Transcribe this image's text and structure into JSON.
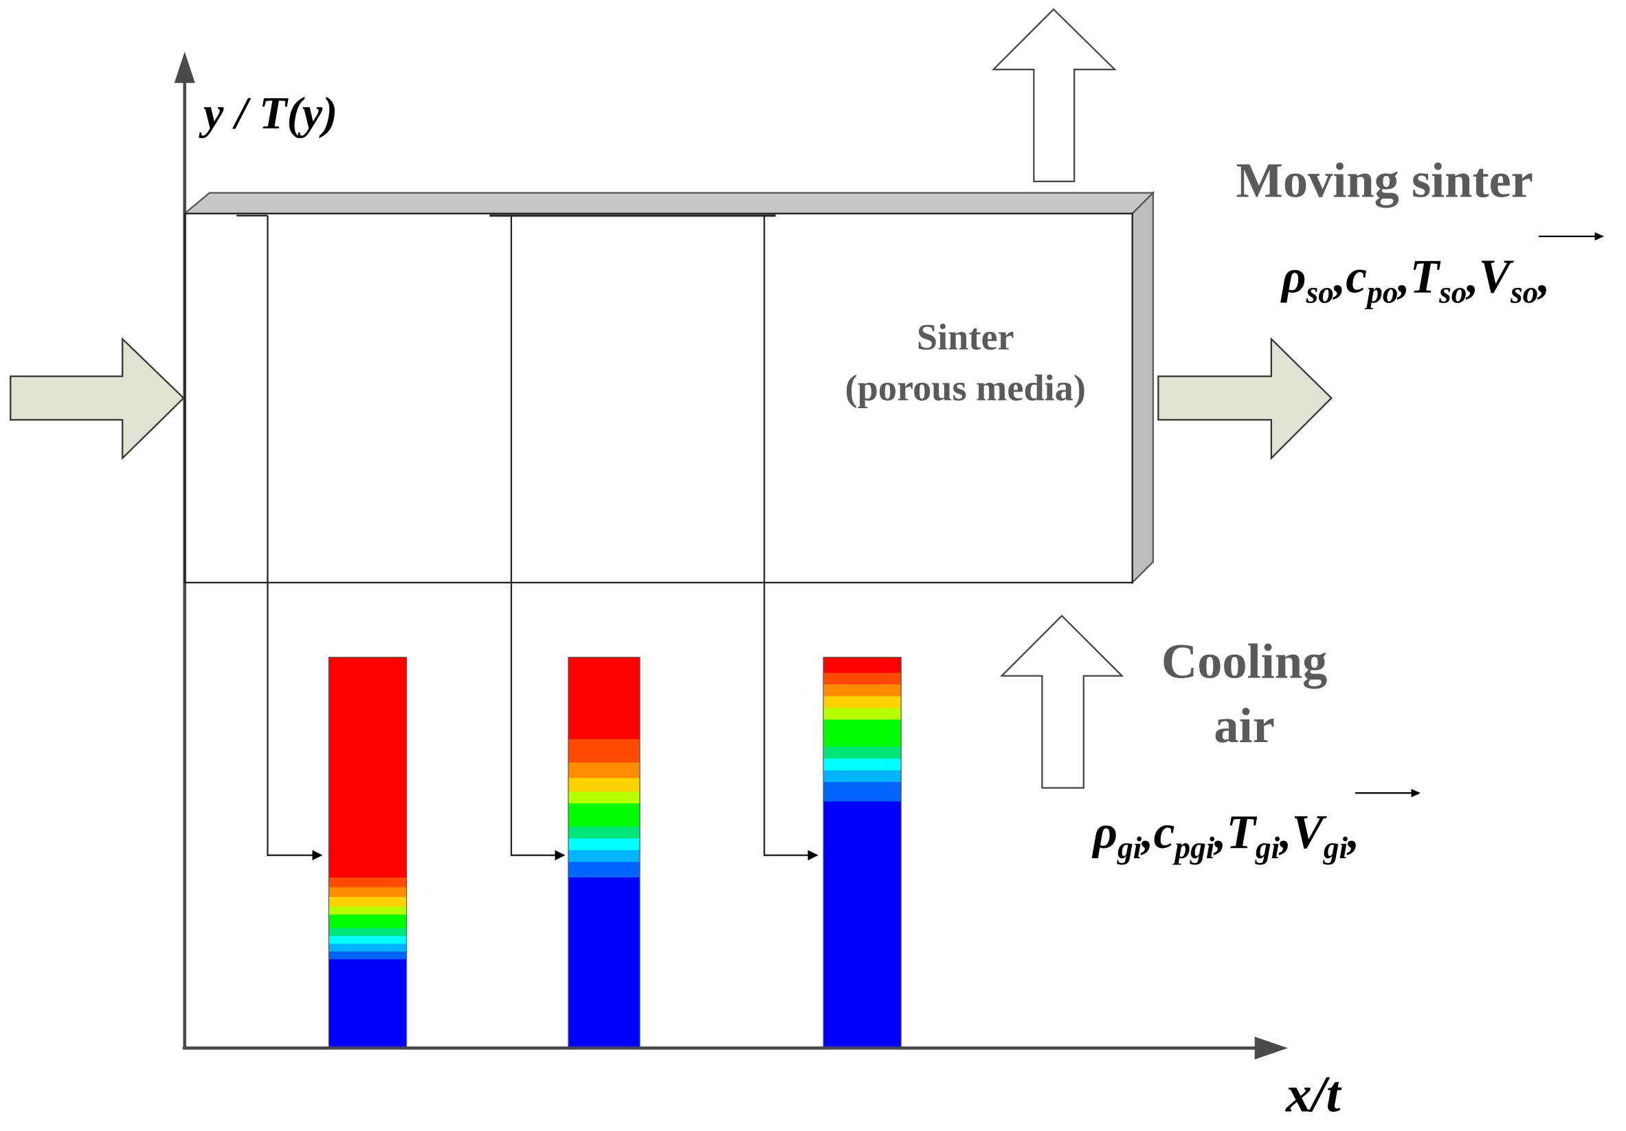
{
  "axes": {
    "y_label": "y / T(y)",
    "x_label": "x/t"
  },
  "sinter_box": {
    "label_line1": "Sinter",
    "label_line2": "(porous media)"
  },
  "moving_sinter": {
    "title": "Moving sinter",
    "properties": [
      {
        "sym": "ρ",
        "sub": "so"
      },
      {
        "sym": "c",
        "sub": "po"
      },
      {
        "sym": "T",
        "sub": "so"
      },
      {
        "sym": "V",
        "sub": "so",
        "vector": true
      }
    ]
  },
  "cooling_air": {
    "title_line1": "Cooling",
    "title_line2": "air",
    "properties": [
      {
        "sym": "ρ",
        "sub": "gi"
      },
      {
        "sym": "c",
        "sub": "pgi"
      },
      {
        "sym": "T",
        "sub": "gi"
      },
      {
        "sym": "V",
        "sub": "gi",
        "vector": true
      }
    ]
  },
  "colors": {
    "feed_arrow_fill": "#dfe3d3",
    "slab_top": "#c8c8c8",
    "slab_side": "#bdbdbd",
    "hot": "#ff0000",
    "cold": "#0000ff"
  },
  "temperature_columns": [
    {
      "name": "profile-1",
      "bands_top_to_bottom": [
        {
          "color": "#ff0000",
          "fraction": 0.565
        },
        {
          "color": "#ff4a00",
          "fraction": 0.025
        },
        {
          "color": "#ff8c00",
          "fraction": 0.025
        },
        {
          "color": "#ffd200",
          "fraction": 0.025
        },
        {
          "color": "#b5ff00",
          "fraction": 0.02
        },
        {
          "color": "#00ff00",
          "fraction": 0.035
        },
        {
          "color": "#00e67a",
          "fraction": 0.02
        },
        {
          "color": "#00ffff",
          "fraction": 0.02
        },
        {
          "color": "#00b4ff",
          "fraction": 0.02
        },
        {
          "color": "#0064ff",
          "fraction": 0.02
        },
        {
          "color": "#0000ff",
          "fraction": 0.225
        }
      ]
    },
    {
      "name": "profile-2",
      "bands_top_to_bottom": [
        {
          "color": "#ff0000",
          "fraction": 0.21
        },
        {
          "color": "#ff4a00",
          "fraction": 0.06
        },
        {
          "color": "#ff8c00",
          "fraction": 0.04
        },
        {
          "color": "#ffd200",
          "fraction": 0.035
        },
        {
          "color": "#b5ff00",
          "fraction": 0.03
        },
        {
          "color": "#00ff00",
          "fraction": 0.06
        },
        {
          "color": "#00e67a",
          "fraction": 0.03
        },
        {
          "color": "#00ffff",
          "fraction": 0.03
        },
        {
          "color": "#00b4ff",
          "fraction": 0.03
        },
        {
          "color": "#0064ff",
          "fraction": 0.04
        },
        {
          "color": "#0000ff",
          "fraction": 0.435
        }
      ]
    },
    {
      "name": "profile-3",
      "bands_top_to_bottom": [
        {
          "color": "#ff0000",
          "fraction": 0.04
        },
        {
          "color": "#ff4a00",
          "fraction": 0.03
        },
        {
          "color": "#ff8c00",
          "fraction": 0.03
        },
        {
          "color": "#ffd200",
          "fraction": 0.03
        },
        {
          "color": "#b5ff00",
          "fraction": 0.03
        },
        {
          "color": "#00ff00",
          "fraction": 0.07
        },
        {
          "color": "#00e67a",
          "fraction": 0.03
        },
        {
          "color": "#00ffff",
          "fraction": 0.03
        },
        {
          "color": "#00b4ff",
          "fraction": 0.03
        },
        {
          "color": "#0064ff",
          "fraction": 0.05
        },
        {
          "color": "#0000ff",
          "fraction": 0.63
        }
      ]
    }
  ]
}
